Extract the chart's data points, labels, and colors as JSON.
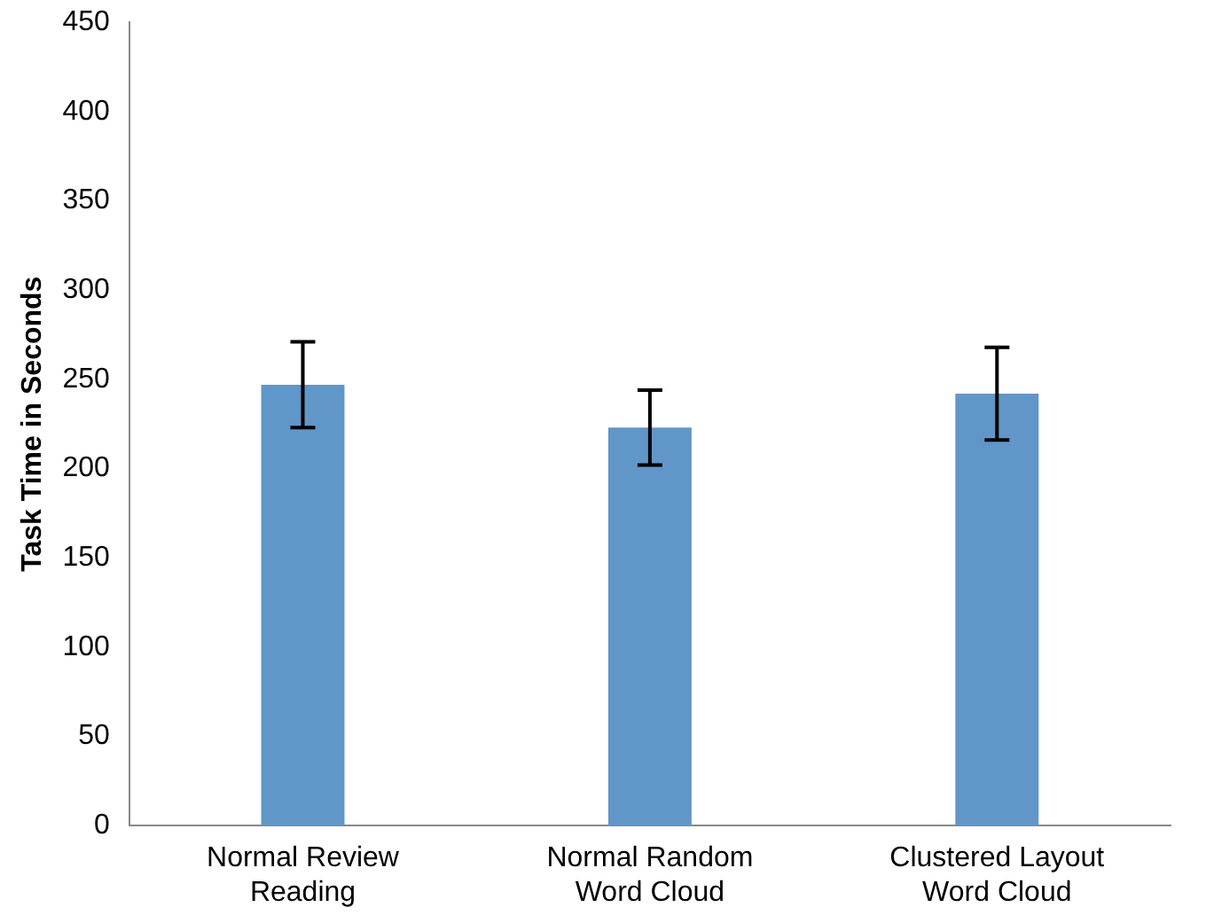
{
  "chart_data": {
    "type": "bar",
    "ylabel": "Task Time in Seconds",
    "categories": [
      "Normal Review Reading",
      "Normal Random Word Cloud",
      "Clustered Layout Word Cloud"
    ],
    "values": [
      247,
      223,
      242
    ],
    "errors": [
      24,
      21,
      26
    ],
    "color": "#6096c8",
    "ylim": [
      0,
      450
    ],
    "yticks": [
      0,
      50,
      100,
      150,
      200,
      250,
      300,
      350,
      400,
      450
    ],
    "grid": false,
    "legend": false
  }
}
